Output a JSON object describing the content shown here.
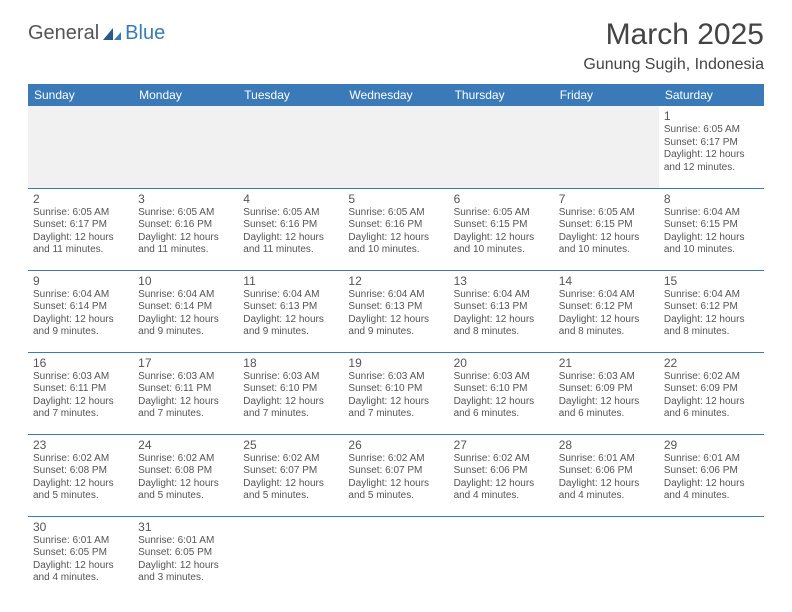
{
  "logo": {
    "text1": "General",
    "text2": "Blue"
  },
  "title": "March 2025",
  "location": "Gunung Sugih, Indonesia",
  "colors": {
    "header_bg": "#3a7ab8",
    "header_text": "#ffffff",
    "row_border": "#3a7ab8",
    "blank_bg": "#f1f1f1",
    "text": "#555555",
    "logo_blue": "#3a7ab8"
  },
  "weekdays": [
    "Sunday",
    "Monday",
    "Tuesday",
    "Wednesday",
    "Thursday",
    "Friday",
    "Saturday"
  ],
  "days": [
    {
      "n": 1,
      "sr": "6:05 AM",
      "ss": "6:17 PM",
      "dl": "12 hours and 12 minutes."
    },
    {
      "n": 2,
      "sr": "6:05 AM",
      "ss": "6:17 PM",
      "dl": "12 hours and 11 minutes."
    },
    {
      "n": 3,
      "sr": "6:05 AM",
      "ss": "6:16 PM",
      "dl": "12 hours and 11 minutes."
    },
    {
      "n": 4,
      "sr": "6:05 AM",
      "ss": "6:16 PM",
      "dl": "12 hours and 11 minutes."
    },
    {
      "n": 5,
      "sr": "6:05 AM",
      "ss": "6:16 PM",
      "dl": "12 hours and 10 minutes."
    },
    {
      "n": 6,
      "sr": "6:05 AM",
      "ss": "6:15 PM",
      "dl": "12 hours and 10 minutes."
    },
    {
      "n": 7,
      "sr": "6:05 AM",
      "ss": "6:15 PM",
      "dl": "12 hours and 10 minutes."
    },
    {
      "n": 8,
      "sr": "6:04 AM",
      "ss": "6:15 PM",
      "dl": "12 hours and 10 minutes."
    },
    {
      "n": 9,
      "sr": "6:04 AM",
      "ss": "6:14 PM",
      "dl": "12 hours and 9 minutes."
    },
    {
      "n": 10,
      "sr": "6:04 AM",
      "ss": "6:14 PM",
      "dl": "12 hours and 9 minutes."
    },
    {
      "n": 11,
      "sr": "6:04 AM",
      "ss": "6:13 PM",
      "dl": "12 hours and 9 minutes."
    },
    {
      "n": 12,
      "sr": "6:04 AM",
      "ss": "6:13 PM",
      "dl": "12 hours and 9 minutes."
    },
    {
      "n": 13,
      "sr": "6:04 AM",
      "ss": "6:13 PM",
      "dl": "12 hours and 8 minutes."
    },
    {
      "n": 14,
      "sr": "6:04 AM",
      "ss": "6:12 PM",
      "dl": "12 hours and 8 minutes."
    },
    {
      "n": 15,
      "sr": "6:04 AM",
      "ss": "6:12 PM",
      "dl": "12 hours and 8 minutes."
    },
    {
      "n": 16,
      "sr": "6:03 AM",
      "ss": "6:11 PM",
      "dl": "12 hours and 7 minutes."
    },
    {
      "n": 17,
      "sr": "6:03 AM",
      "ss": "6:11 PM",
      "dl": "12 hours and 7 minutes."
    },
    {
      "n": 18,
      "sr": "6:03 AM",
      "ss": "6:10 PM",
      "dl": "12 hours and 7 minutes."
    },
    {
      "n": 19,
      "sr": "6:03 AM",
      "ss": "6:10 PM",
      "dl": "12 hours and 7 minutes."
    },
    {
      "n": 20,
      "sr": "6:03 AM",
      "ss": "6:10 PM",
      "dl": "12 hours and 6 minutes."
    },
    {
      "n": 21,
      "sr": "6:03 AM",
      "ss": "6:09 PM",
      "dl": "12 hours and 6 minutes."
    },
    {
      "n": 22,
      "sr": "6:02 AM",
      "ss": "6:09 PM",
      "dl": "12 hours and 6 minutes."
    },
    {
      "n": 23,
      "sr": "6:02 AM",
      "ss": "6:08 PM",
      "dl": "12 hours and 5 minutes."
    },
    {
      "n": 24,
      "sr": "6:02 AM",
      "ss": "6:08 PM",
      "dl": "12 hours and 5 minutes."
    },
    {
      "n": 25,
      "sr": "6:02 AM",
      "ss": "6:07 PM",
      "dl": "12 hours and 5 minutes."
    },
    {
      "n": 26,
      "sr": "6:02 AM",
      "ss": "6:07 PM",
      "dl": "12 hours and 5 minutes."
    },
    {
      "n": 27,
      "sr": "6:02 AM",
      "ss": "6:06 PM",
      "dl": "12 hours and 4 minutes."
    },
    {
      "n": 28,
      "sr": "6:01 AM",
      "ss": "6:06 PM",
      "dl": "12 hours and 4 minutes."
    },
    {
      "n": 29,
      "sr": "6:01 AM",
      "ss": "6:06 PM",
      "dl": "12 hours and 4 minutes."
    },
    {
      "n": 30,
      "sr": "6:01 AM",
      "ss": "6:05 PM",
      "dl": "12 hours and 4 minutes."
    },
    {
      "n": 31,
      "sr": "6:01 AM",
      "ss": "6:05 PM",
      "dl": "12 hours and 3 minutes."
    }
  ],
  "labels": {
    "sunrise": "Sunrise:",
    "sunset": "Sunset:",
    "daylight": "Daylight:"
  },
  "first_weekday_index": 6
}
